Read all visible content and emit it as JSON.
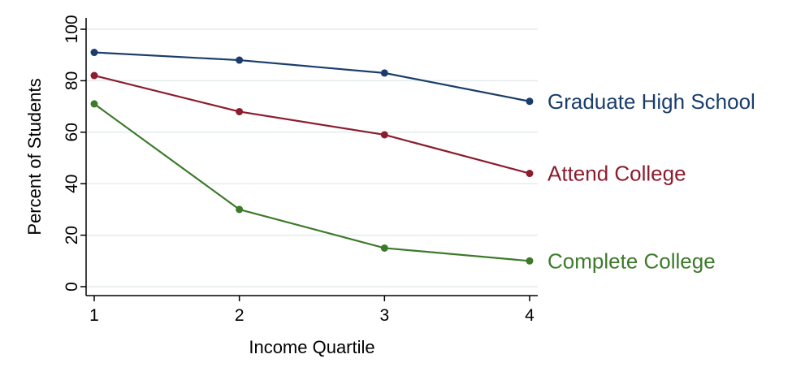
{
  "chart_data": {
    "type": "line",
    "xlabel": "Income Quartile",
    "ylabel": "Percent of Students",
    "x": [
      1,
      2,
      3,
      4
    ],
    "xticks": [
      "1",
      "2",
      "3",
      "4"
    ],
    "yticks": [
      "0",
      "20",
      "40",
      "60",
      "80",
      "100"
    ],
    "ylim": [
      0,
      100
    ],
    "grid": true,
    "legend": "inline-right",
    "series": [
      {
        "name": "Graduate High School",
        "values": [
          91,
          88,
          83,
          72
        ],
        "color": "#1a3d6b"
      },
      {
        "name": "Attend College",
        "values": [
          82,
          68,
          59,
          44
        ],
        "color": "#8c1c2e"
      },
      {
        "name": "Complete College",
        "values": [
          71,
          30,
          15,
          10
        ],
        "color": "#3d7a2a"
      }
    ]
  }
}
